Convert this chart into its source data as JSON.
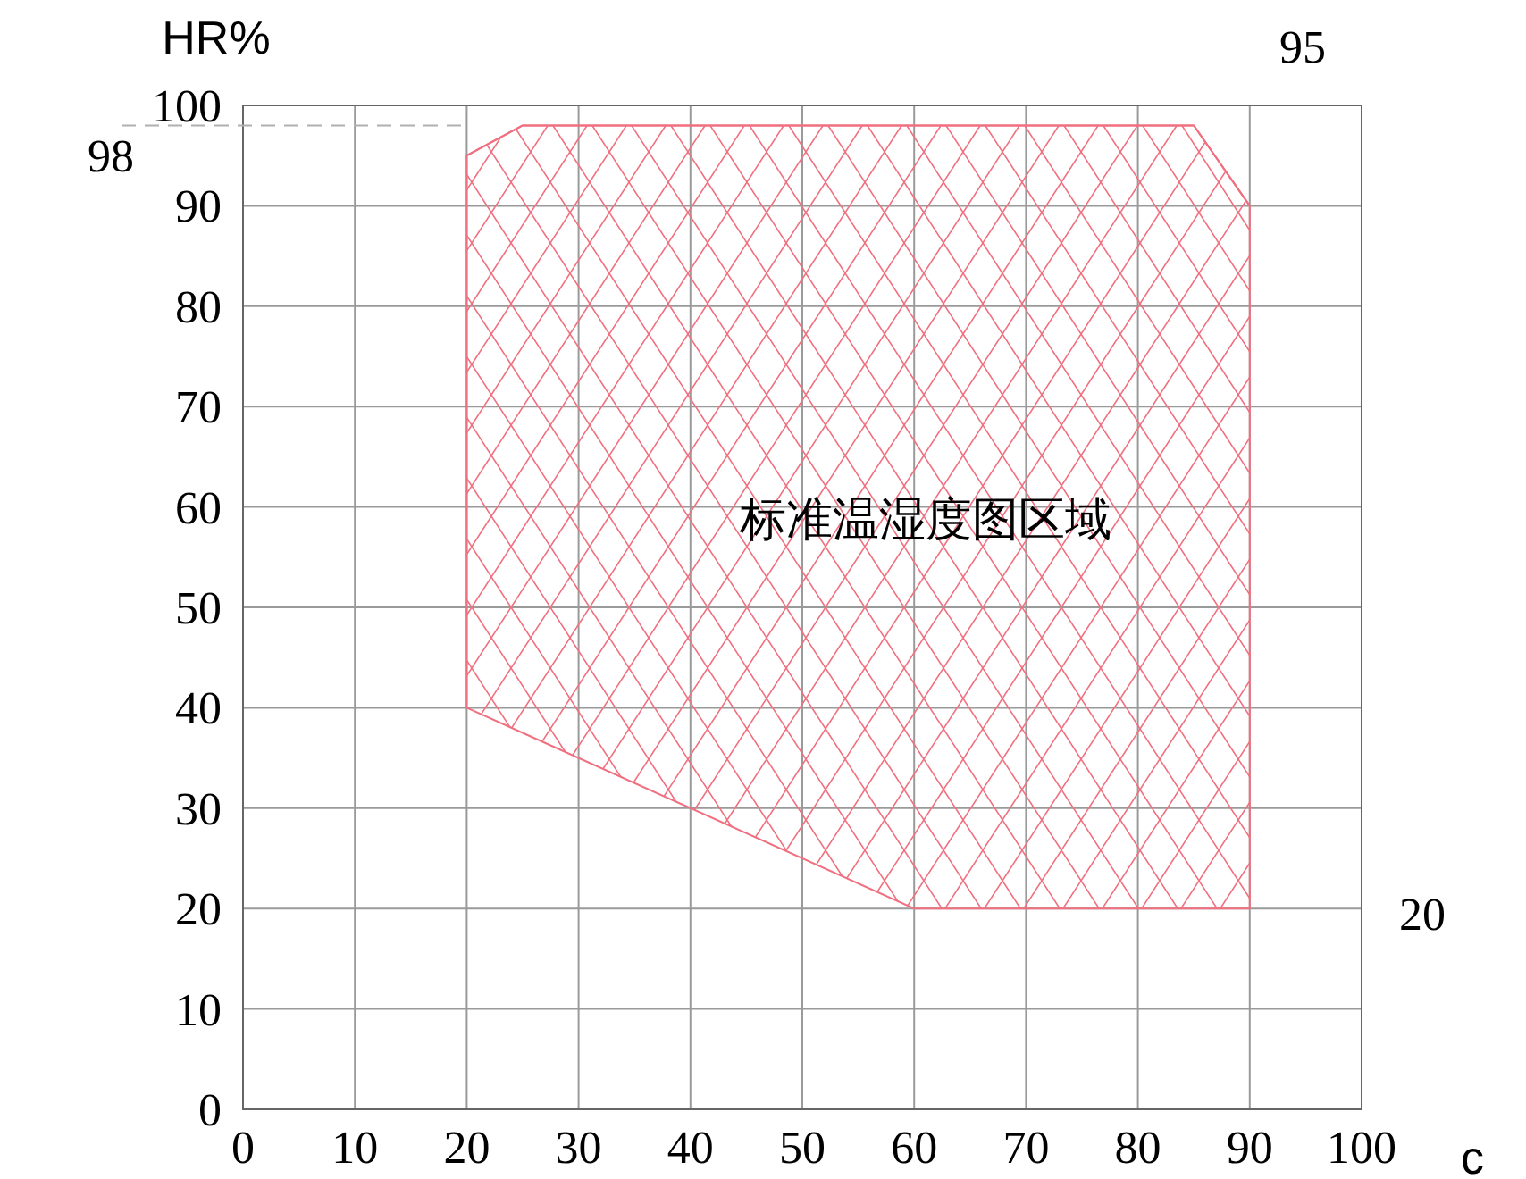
{
  "chart_data": {
    "type": "line",
    "xlabel": "c",
    "ylabel": "HR%",
    "xlim": [
      0,
      100
    ],
    "ylim": [
      0,
      100
    ],
    "xticks": [
      0,
      10,
      20,
      30,
      40,
      50,
      60,
      70,
      80,
      90,
      100
    ],
    "yticks": [
      0,
      10,
      20,
      30,
      40,
      50,
      60,
      70,
      80,
      90,
      100
    ],
    "grid": true,
    "series": [
      {
        "color": "#f07080",
        "x": [
          20,
          25,
          60,
          85,
          90
        ],
        "values": [
          95,
          98,
          98,
          98,
          90
        ],
        "upper": [
          95,
          98,
          98,
          98,
          90
        ],
        "lower": [
          40,
          37.5,
          20,
          20,
          20
        ]
      }
    ],
    "ref_lines": [
      {
        "axis": "y",
        "value": 98,
        "label": "98",
        "line_style": "dashed",
        "color": "#b0b0b0"
      }
    ],
    "annotations": [
      "标准温湿度图区域",
      "20",
      "95"
    ]
  }
}
